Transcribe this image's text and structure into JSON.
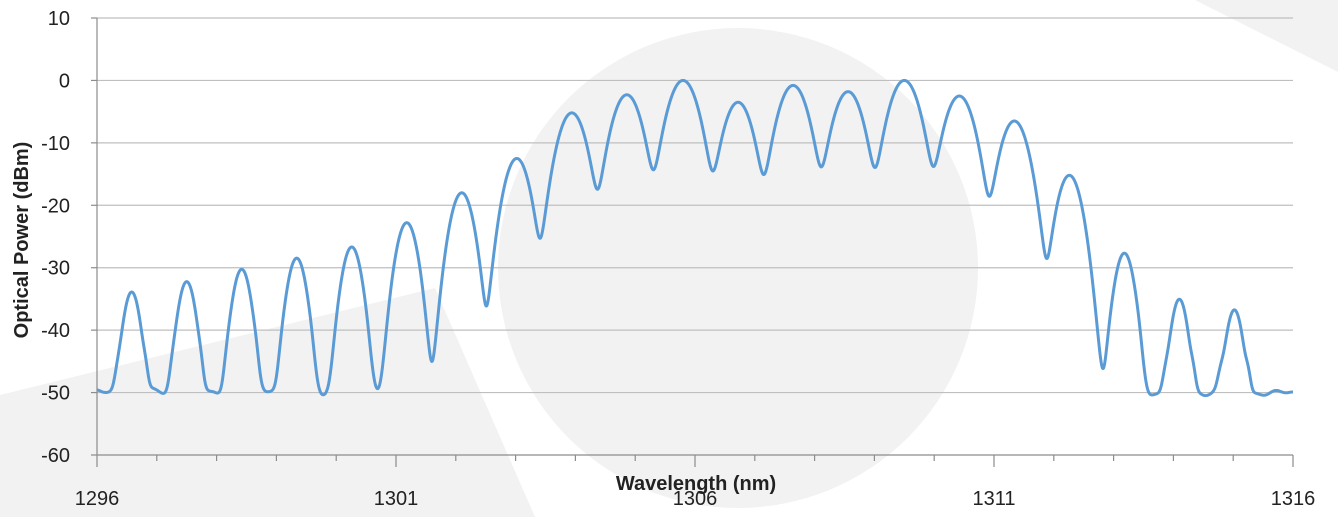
{
  "chart_data": {
    "type": "line",
    "title": "",
    "xlabel": "Wavelength (nm)",
    "ylabel": "Optical Power (dBm)",
    "xlim": [
      1296,
      1316
    ],
    "ylim": [
      -60,
      10
    ],
    "x_ticks": [
      1296,
      1301,
      1306,
      1311,
      1316
    ],
    "y_ticks": [
      10,
      0,
      -10,
      -20,
      -30,
      -40,
      -50,
      -60
    ],
    "grid": "horizontal",
    "legend": "none",
    "baseline_dbm": -50,
    "colors": {
      "line": "#5b9bd5",
      "grid": "#bfbfbf",
      "axis": "#8c8c8c",
      "watermark": "#f2f2f2"
    },
    "series": [
      {
        "peaks": [
          {
            "x": 1296.58,
            "y": -34
          },
          {
            "x": 1297.5,
            "y": -32.3
          },
          {
            "x": 1298.42,
            "y": -30.3
          },
          {
            "x": 1299.34,
            "y": -28.5
          },
          {
            "x": 1300.26,
            "y": -26.7
          },
          {
            "x": 1301.18,
            "y": -22.8
          },
          {
            "x": 1302.1,
            "y": -18
          },
          {
            "x": 1303.02,
            "y": -12.5
          },
          {
            "x": 1303.94,
            "y": -5.2
          },
          {
            "x": 1304.86,
            "y": -2.3
          },
          {
            "x": 1305.8,
            "y": 0
          },
          {
            "x": 1306.72,
            "y": -3.5
          },
          {
            "x": 1307.64,
            "y": -0.8
          },
          {
            "x": 1308.56,
            "y": -1.8
          },
          {
            "x": 1309.5,
            "y": 0
          },
          {
            "x": 1310.42,
            "y": -2.5
          },
          {
            "x": 1311.34,
            "y": -6.5
          },
          {
            "x": 1312.26,
            "y": -15.2
          },
          {
            "x": 1313.18,
            "y": -27.7
          },
          {
            "x": 1314.1,
            "y": -35.2
          },
          {
            "x": 1315.02,
            "y": -37
          }
        ]
      }
    ]
  }
}
